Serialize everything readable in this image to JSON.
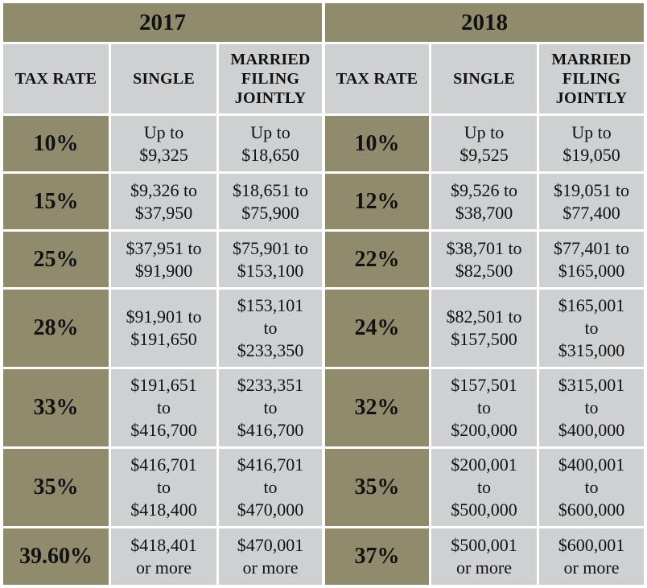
{
  "years": [
    "2017",
    "2018"
  ],
  "headers": {
    "tax_rate": "TAX RATE",
    "single": "SINGLE",
    "married": "MARRIED\nFILING\nJOINTLY"
  },
  "rows": [
    {
      "r2017": "10%",
      "s2017": "Up to\n$9,325",
      "m2017": "Up to\n$18,650",
      "r2018": "10%",
      "s2018": "Up to\n$9,525",
      "m2018": "Up to\n$19,050"
    },
    {
      "r2017": "15%",
      "s2017": "$9,326 to\n$37,950",
      "m2017": "$18,651 to\n$75,900",
      "r2018": "12%",
      "s2018": "$9,526 to\n$38,700",
      "m2018": "$19,051 to\n$77,400"
    },
    {
      "r2017": "25%",
      "s2017": "$37,951 to\n$91,900",
      "m2017": "$75,901 to\n$153,100",
      "r2018": "22%",
      "s2018": "$38,701 to\n$82,500",
      "m2018": "$77,401 to\n$165,000"
    },
    {
      "r2017": "28%",
      "s2017": "$91,901 to\n$191,650",
      "m2017": "$153,101\nto\n$233,350",
      "r2018": "24%",
      "s2018": "$82,501 to\n$157,500",
      "m2018": "$165,001\nto\n$315,000"
    },
    {
      "r2017": "33%",
      "s2017": "$191,651\nto\n$416,700",
      "m2017": "$233,351\nto\n$416,700",
      "r2018": "32%",
      "s2018": "$157,501\nto\n$200,000",
      "m2018": "$315,001\nto\n$400,000"
    },
    {
      "r2017": "35%",
      "s2017": "$416,701\nto\n$418,400",
      "m2017": "$416,701\nto\n$470,000",
      "r2018": "35%",
      "s2018": "$200,001\nto\n$500,000",
      "m2018": "$400,001\nto\n$600,000"
    },
    {
      "r2017": "39.60%",
      "s2017": "$418,401\nor more",
      "m2017": "$470,001\nor more",
      "r2018": "37%",
      "s2018": "$500,001\nor more",
      "m2018": "$600,001\nor more"
    }
  ]
}
